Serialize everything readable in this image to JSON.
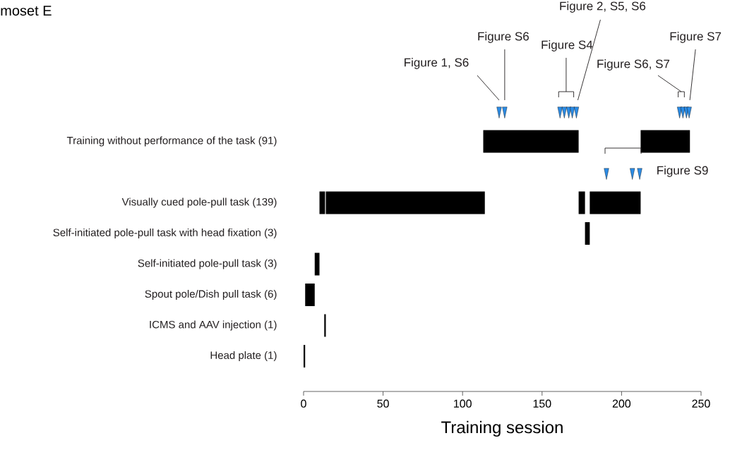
{
  "chart_data": {
    "type": "bar",
    "orientation": "horizontal",
    "title": "moset E",
    "xlabel": "Training session",
    "marker": "triangle",
    "categories": [
      null,
      "Training without performance of the task (91)",
      null,
      "Visually cued pole-pull task (139)",
      "Self-initiated pole-pull task with head fixation (3)",
      "Self-initiated pole-pull task (3)",
      "Spout pole/Dish pull task (6)",
      "ICMS and AAV injection (1)",
      "Head plate (1)"
    ],
    "series": [
      {
        "color": "#000000",
        "base": [
          null,
          113,
          null,
          10,
          177,
          7,
          1,
          13,
          0
        ],
        "values": [
          null,
          60,
          null,
          3.5,
          3,
          3,
          6,
          1,
          1
        ]
      },
      {
        "color": "#000000",
        "base": [
          null,
          212,
          null,
          14,
          null,
          null,
          null,
          null,
          null
        ],
        "values": [
          null,
          31,
          null,
          100,
          null,
          null,
          null,
          null,
          null
        ]
      },
      {
        "color": "#000000",
        "base": [
          null,
          null,
          null,
          173,
          null,
          null,
          null,
          null,
          null
        ],
        "values": [
          null,
          null,
          null,
          4,
          null,
          null,
          null,
          null,
          null
        ]
      },
      {
        "color": "#000000",
        "base": [
          null,
          null,
          null,
          180,
          null,
          null,
          null,
          null,
          null
        ],
        "values": [
          null,
          null,
          null,
          32,
          null,
          null,
          null,
          null,
          null
        ]
      },
      {
        "type": "scatter",
        "color": "#2b8ce6",
        "values": [
          123,
          null,
          190.5,
          null,
          null,
          null,
          null,
          null,
          null
        ]
      },
      {
        "type": "scatter",
        "color": "#2b8ce6",
        "values": [
          126.5,
          null,
          206.8,
          null,
          null,
          null,
          null,
          null,
          null
        ]
      },
      {
        "type": "scatter",
        "color": "#2b8ce6",
        "values": [
          161.3,
          null,
          211.4,
          null,
          null,
          null,
          null,
          null,
          null
        ]
      },
      {
        "type": "scatter",
        "color": "#2b8ce6",
        "values": [
          164,
          null,
          null,
          null,
          null,
          null,
          null,
          null,
          null
        ]
      },
      {
        "type": "scatter",
        "color": "#2b8ce6",
        "values": [
          166.8,
          null,
          null,
          null,
          null,
          null,
          null,
          null,
          null
        ]
      },
      {
        "type": "scatter",
        "color": "#2b8ce6",
        "values": [
          169,
          null,
          null,
          null,
          null,
          null,
          null,
          null,
          null
        ]
      },
      {
        "type": "scatter",
        "color": "#2b8ce6",
        "values": [
          171.6,
          null,
          null,
          null,
          null,
          null,
          null,
          null,
          null
        ]
      },
      {
        "type": "scatter",
        "color": "#2b8ce6",
        "values": [
          236.5,
          null,
          null,
          null,
          null,
          null,
          null,
          null,
          null
        ]
      },
      {
        "type": "scatter",
        "color": "#2b8ce6",
        "values": [
          238.6,
          null,
          null,
          null,
          null,
          null,
          null,
          null,
          null
        ]
      },
      {
        "type": "scatter",
        "color": "#2b8ce6",
        "values": [
          240.8,
          null,
          null,
          null,
          null,
          null,
          null,
          null,
          null
        ]
      },
      {
        "type": "scatter",
        "color": "#2b8ce6",
        "values": [
          242.5,
          null,
          null,
          null,
          null,
          null,
          null,
          null,
          null
        ]
      }
    ],
    "xlim": [
      0,
      250
    ],
    "xticks": [
      0,
      50,
      100,
      150,
      200,
      250
    ],
    "annotations": [
      "Figure 1, S6",
      "Figure S6",
      "Figure S4",
      "Figure 2, S5, S6",
      "Figure S6, S7",
      "Figure S7",
      "Figure S9"
    ]
  }
}
